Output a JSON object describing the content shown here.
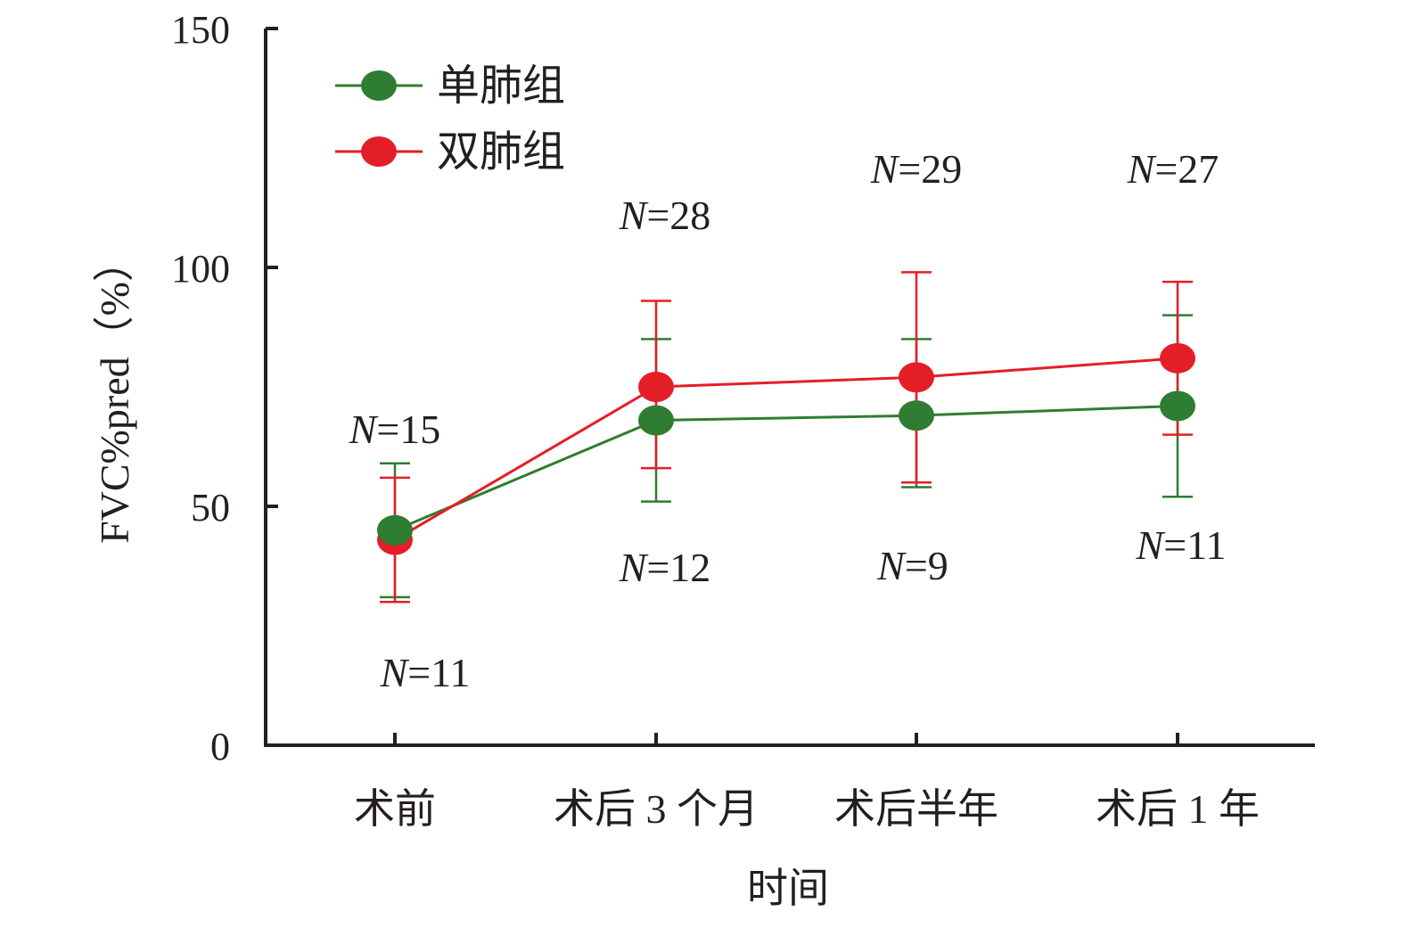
{
  "chart_data": {
    "type": "line",
    "xlabel": "时间",
    "ylabel": "FVC%pred（%）",
    "ylim": [
      0,
      150
    ],
    "yticks": [
      0,
      50,
      100,
      150
    ],
    "grid": false,
    "legend_position": "top-left",
    "categories": [
      "术前",
      "术后 3 个月",
      "术后半年",
      "术后 1 年"
    ],
    "series": [
      {
        "name": "单肺组",
        "color": "#2e7d32",
        "values": [
          45,
          68,
          69,
          71
        ],
        "error_upper": [
          59,
          85,
          85,
          90
        ],
        "error_lower": [
          31,
          51,
          54,
          52
        ],
        "n_labels": [
          "N=11",
          "N=12",
          "N=9",
          "N=11"
        ]
      },
      {
        "name": "双肺组",
        "color": "#e41e26",
        "values": [
          43,
          75,
          77,
          81
        ],
        "error_upper": [
          56,
          93,
          99,
          97
        ],
        "error_lower": [
          30,
          58,
          55,
          65
        ],
        "n_labels": [
          "N=15",
          "N=28",
          "N=29",
          "N=27"
        ]
      }
    ]
  }
}
